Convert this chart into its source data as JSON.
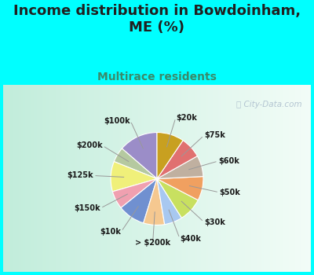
{
  "title": "Income distribution in Bowdoinham,\nME (%)",
  "subtitle": "Multirace residents",
  "watermark": "ⓘ City-Data.com",
  "labels": [
    "$100k",
    "$200k",
    "$125k",
    "$150k",
    "$10k",
    "> $200k",
    "$40k",
    "$30k",
    "$50k",
    "$60k",
    "$75k",
    "$20k"
  ],
  "values": [
    13,
    5,
    10,
    6,
    9,
    7,
    6,
    8,
    8,
    7,
    7,
    9
  ],
  "colors": [
    "#9b8dc8",
    "#b5c9a0",
    "#f0f07a",
    "#f0a0b0",
    "#7090d0",
    "#f5c890",
    "#a8c8f0",
    "#c8e060",
    "#f0a060",
    "#c0b0a0",
    "#e07070",
    "#c8a020"
  ],
  "background_top": "#00ffff",
  "chart_bg_left": "#c8eee0",
  "chart_bg_right": "#f0faf8",
  "title_color": "#202020",
  "subtitle_color": "#3a8a6a",
  "label_color": "#1a1a1a",
  "watermark_color": "#aabccc",
  "startangle": 90,
  "fig_width": 4.0,
  "fig_height": 3.5,
  "dpi": 100,
  "title_fontsize": 13,
  "subtitle_fontsize": 10,
  "label_fontsize": 7
}
